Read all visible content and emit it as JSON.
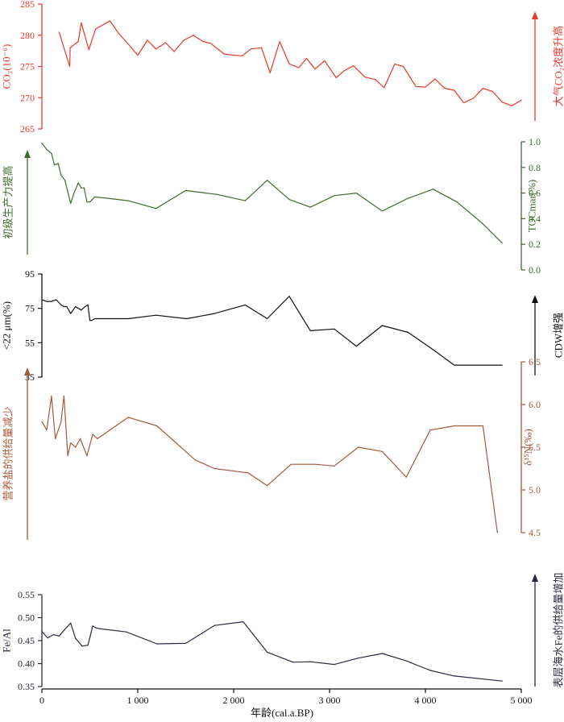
{
  "chart_data": [
    {
      "type": "line",
      "panel": "co2",
      "color": "#e8382c",
      "ylabel": "CO₂(10⁻⁶)",
      "ylim": [
        265,
        285
      ],
      "yticks": [
        265,
        270,
        275,
        280,
        285
      ],
      "arrow_label": "大气CO₂浓度升高",
      "series": [
        {
          "x": [
            180,
            290,
            295,
            380,
            410,
            490,
            560,
            710,
            800,
            900,
            1000,
            1100,
            1190,
            1290,
            1380,
            1480,
            1580,
            1680,
            1760,
            1900,
            2000,
            2090,
            2180,
            2290,
            2380,
            2480,
            2580,
            2680,
            2760,
            2850,
            2950,
            3070,
            3150,
            3250,
            3370,
            3480,
            3570,
            3680,
            3770,
            3900,
            4000,
            4100,
            4200,
            4300,
            4400,
            4500,
            4600,
            4700,
            4800,
            4900,
            5000
          ],
          "y": [
            280.5,
            275.0,
            278.0,
            279.0,
            282.0,
            277.7,
            281.0,
            282.3,
            280.3,
            278.6,
            276.8,
            279.2,
            277.8,
            278.8,
            277.4,
            279.2,
            280.0,
            279.0,
            278.7,
            277.0,
            276.8,
            276.7,
            277.8,
            278.0,
            274.0,
            279.0,
            275.4,
            274.8,
            276.3,
            274.6,
            275.9,
            273.2,
            274.3,
            275.1,
            273.3,
            272.9,
            271.6,
            275.4,
            275.0,
            271.8,
            271.7,
            273.0,
            271.5,
            271.2,
            269.2,
            269.9,
            271.5,
            271.0,
            269.3,
            268.7,
            269.6
          ]
        }
      ]
    },
    {
      "type": "line",
      "panel": "toc",
      "color": "#3f6b2c",
      "ylabel": "TOCmar(%)",
      "ylim": [
        0.0,
        1.0
      ],
      "yticks": [
        "0.0",
        "0.2",
        "0.4",
        "0.6",
        "0.8",
        "1.0"
      ],
      "arrow_label": "初级生产力提高",
      "series": [
        {
          "x": [
            0,
            50,
            100,
            130,
            170,
            200,
            240,
            270,
            300,
            340,
            380,
            410,
            440,
            470,
            500,
            550,
            680,
            900,
            1190,
            1500,
            1820,
            2120,
            2350,
            2580,
            2800,
            3050,
            3280,
            3550,
            3820,
            4080,
            4330,
            4600,
            4800
          ],
          "y": [
            0.99,
            0.94,
            0.91,
            0.82,
            0.83,
            0.74,
            0.7,
            0.61,
            0.52,
            0.61,
            0.68,
            0.64,
            0.64,
            0.53,
            0.53,
            0.57,
            0.56,
            0.54,
            0.48,
            0.62,
            0.59,
            0.54,
            0.7,
            0.55,
            0.49,
            0.58,
            0.6,
            0.46,
            0.56,
            0.63,
            0.53,
            0.36,
            0.21
          ]
        }
      ]
    },
    {
      "type": "line",
      "panel": "grain",
      "color": "#111111",
      "ylabel": "<22 μm(%)",
      "ylim": [
        35,
        95
      ],
      "yticks": [
        35,
        55,
        75,
        95
      ],
      "arrow_label": "CDW增强",
      "series": [
        {
          "x": [
            0,
            50,
            100,
            150,
            200,
            230,
            260,
            300,
            350,
            410,
            450,
            480,
            500,
            520,
            550,
            600,
            900,
            1190,
            1510,
            1800,
            2120,
            2350,
            2580,
            2800,
            3050,
            3280,
            3550,
            3820,
            4080,
            4300,
            4800
          ],
          "y": [
            80,
            79,
            79,
            80,
            77,
            76,
            76,
            72,
            76,
            74,
            76,
            77,
            68,
            68,
            69,
            69,
            69,
            71,
            69,
            72,
            77,
            69,
            82,
            62,
            63,
            53,
            65,
            61,
            51,
            42,
            42
          ]
        }
      ]
    },
    {
      "type": "line",
      "panel": "d15n",
      "color": "#a45a3a",
      "ylabel": "δ¹⁵N(‰)",
      "ylim": [
        4.5,
        6.5
      ],
      "yticks": [
        "4.5",
        "5.0",
        "5.5",
        "6.0",
        "6.5"
      ],
      "arrow_label": "营养盐的供给量减少",
      "series": [
        {
          "x": [
            0,
            50,
            100,
            140,
            200,
            230,
            270,
            300,
            350,
            400,
            470,
            530,
            580,
            900,
            1200,
            1600,
            1800,
            2150,
            2350,
            2600,
            2850,
            3050,
            3300,
            3550,
            3800,
            4050,
            4300,
            4600,
            4750
          ],
          "y": [
            5.8,
            5.7,
            6.1,
            5.6,
            5.8,
            6.1,
            5.4,
            5.55,
            5.5,
            5.6,
            5.4,
            5.65,
            5.6,
            5.85,
            5.75,
            5.35,
            5.25,
            5.2,
            5.05,
            5.3,
            5.3,
            5.28,
            5.5,
            5.45,
            5.15,
            5.7,
            5.75,
            5.75,
            4.5
          ]
        }
      ]
    },
    {
      "type": "line",
      "panel": "feal",
      "color": "#2f2640",
      "ylabel": "Fe/Al",
      "ylim": [
        0.35,
        0.55
      ],
      "yticks": [
        "0.35",
        "0.40",
        "0.45",
        "0.50",
        "0.55"
      ],
      "arrow_label": "表层海水Fe的供给量增加",
      "xlim": [
        0,
        5000
      ],
      "xticks": [
        "0",
        "1 000",
        "2 000",
        "3 000",
        "4 000",
        "5 000"
      ],
      "xlabel": "年龄(cal.a.BP)",
      "series": [
        {
          "x": [
            0,
            60,
            120,
            180,
            240,
            300,
            350,
            420,
            480,
            530,
            560,
            600,
            880,
            1200,
            1500,
            1800,
            2100,
            2350,
            2620,
            2800,
            3050,
            3300,
            3550,
            3800,
            4050,
            4300,
            4800
          ],
          "y": [
            0.47,
            0.456,
            0.463,
            0.46,
            0.475,
            0.488,
            0.455,
            0.438,
            0.44,
            0.482,
            0.478,
            0.476,
            0.469,
            0.443,
            0.444,
            0.483,
            0.491,
            0.425,
            0.403,
            0.404,
            0.398,
            0.412,
            0.422,
            0.406,
            0.385,
            0.373,
            0.362
          ]
        }
      ]
    }
  ]
}
